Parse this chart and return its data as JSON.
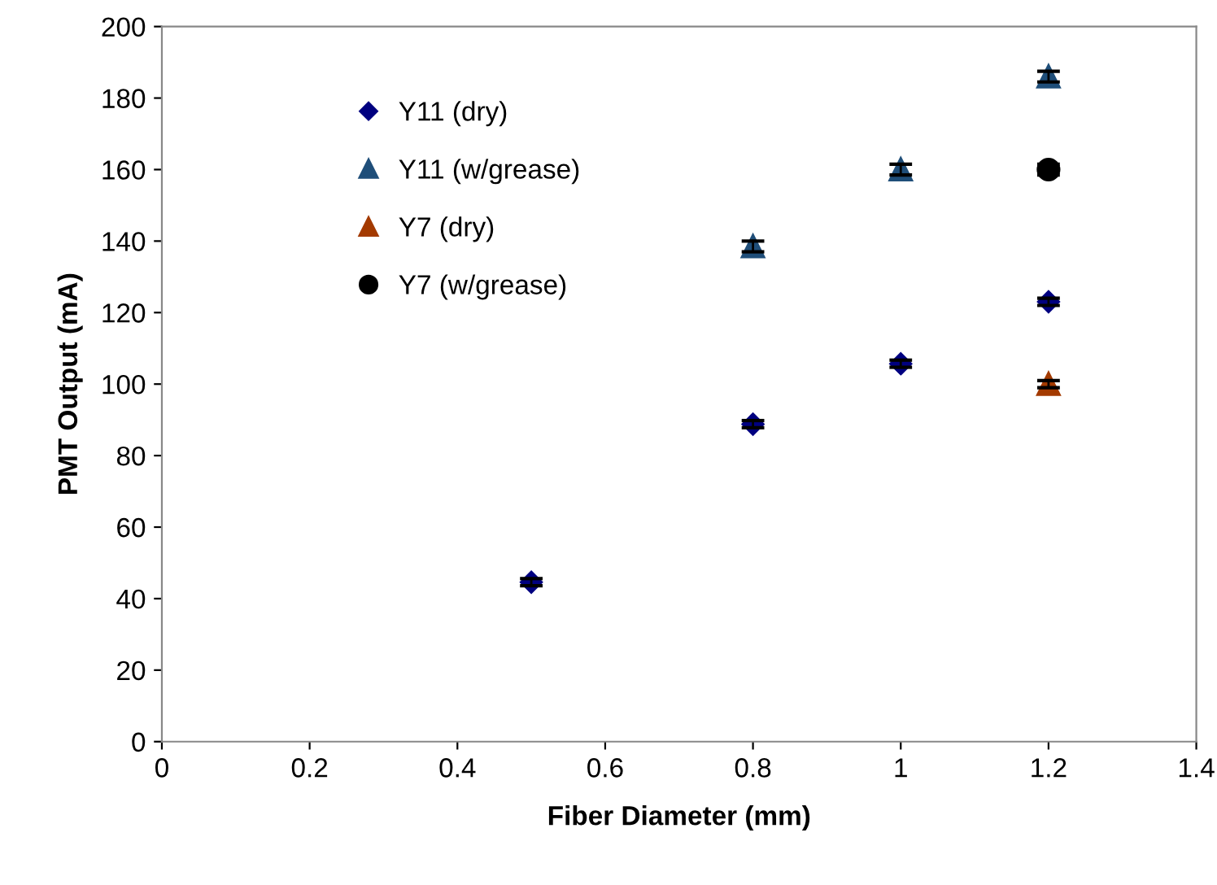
{
  "chart_data": {
    "type": "scatter",
    "xlabel": "Fiber Diameter (mm)",
    "ylabel": "PMT Output (mA)",
    "xlim": [
      0,
      1.4
    ],
    "xticks": [
      0,
      0.2,
      0.4,
      0.6,
      0.8,
      1,
      1.2,
      1.4
    ],
    "ylim": [
      0,
      200
    ],
    "yticks": [
      0,
      20,
      40,
      60,
      80,
      100,
      120,
      140,
      160,
      180,
      200
    ],
    "grid": false,
    "legend": "top left",
    "series": [
      {
        "name": "Y11 (dry)",
        "color": "#000080",
        "marker": "diamond",
        "x": [
          0.5,
          0.8,
          1,
          1.2
        ],
        "values": [
          44.6,
          88.8,
          105.7,
          123
        ],
        "errors": [
          1,
          1,
          1,
          1
        ]
      },
      {
        "name": "Y11 (w/grease)",
        "color": "#1f4e79",
        "marker": "triangle",
        "x": [
          0.8,
          1,
          1.2
        ],
        "values": [
          138.5,
          160,
          186
        ],
        "errors": [
          1.5,
          1.5,
          1.5
        ]
      },
      {
        "name": "Y7 (dry)",
        "color": "#a33a00",
        "marker": "triangle",
        "x": [
          1.2
        ],
        "values": [
          100
        ],
        "errors": [
          1
        ]
      },
      {
        "name": "Y7 (w/grease)",
        "color": "#000000",
        "marker": "circle",
        "x": [
          1.2
        ],
        "values": [
          160
        ],
        "errors": [
          1.5
        ]
      }
    ]
  }
}
